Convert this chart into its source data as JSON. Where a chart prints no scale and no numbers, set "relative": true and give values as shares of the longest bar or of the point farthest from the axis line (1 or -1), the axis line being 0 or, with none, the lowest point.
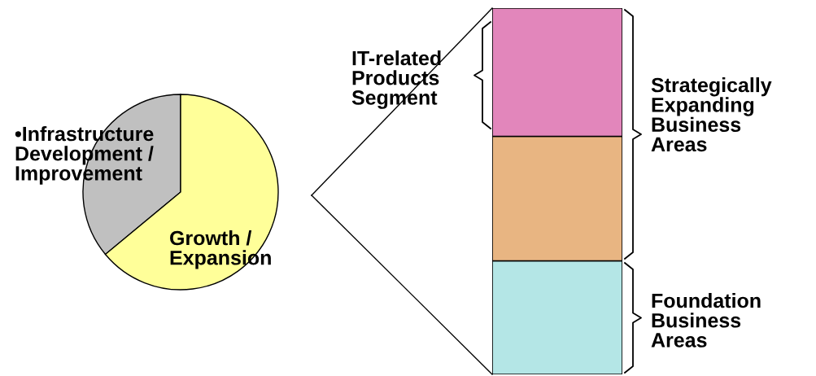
{
  "chart_data": [
    {
      "type": "pie",
      "categories": [
        "•Infrastructure\nDevelopment /\nImprovement",
        "Growth /\nExpansion"
      ],
      "values": [
        36,
        64
      ],
      "colors": [
        "#c0c0c0",
        "#ffff99"
      ]
    },
    {
      "type": "bar",
      "stacked": true,
      "relative": true,
      "categories": [
        null
      ],
      "series": [
        {
          "color": "#b4e6e6",
          "values": [
            0.31
          ]
        },
        {
          "color": "#e8b582",
          "values": [
            0.34
          ]
        },
        {
          "color": "#e286bb",
          "values": [
            0.35
          ]
        }
      ],
      "annotations": [
        "IT-related\nProducts\nSegment",
        "Strategically\nExpanding\nBusiness\nAreas",
        "Foundation\nBusiness\nAreas"
      ]
    }
  ]
}
